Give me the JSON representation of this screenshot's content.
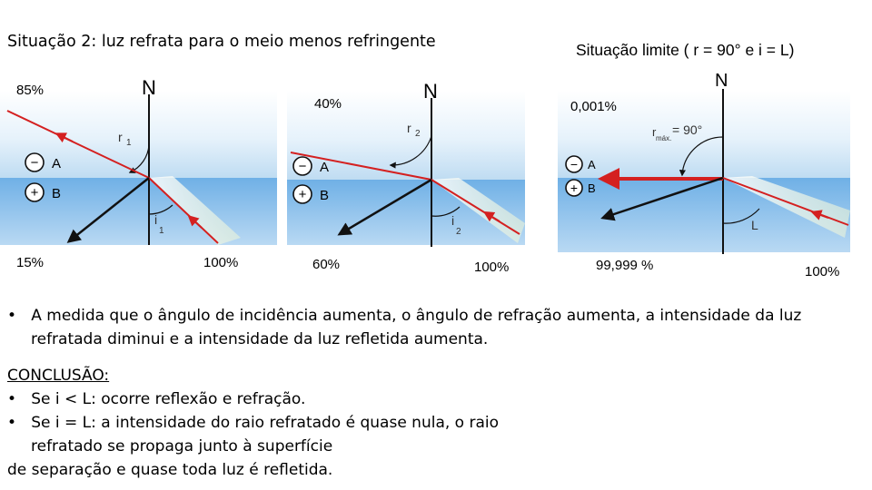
{
  "titles": {
    "situation2": "Situação 2: luz refrata para o meio menos refringente",
    "limit": "Situação limite ( r = 90° e i = L)"
  },
  "diagram1": {
    "normal": "N",
    "refracted_angle": "r",
    "refracted_sub": "1",
    "incident_angle": "i",
    "incident_sub": "1",
    "medium_minus": "−",
    "medium_minus_label": "A",
    "medium_plus": "+",
    "medium_plus_label": "B",
    "refracted_intensity": "85%",
    "reflected_intensity": "15%",
    "incident_intensity": "100%"
  },
  "diagram2": {
    "normal": "N",
    "refracted_angle": "r",
    "refracted_sub": "2",
    "incident_angle": "i",
    "incident_sub": "2",
    "medium_minus": "−",
    "medium_minus_label": "A",
    "medium_plus": "+",
    "medium_plus_label": "B",
    "refracted_intensity": "40%",
    "reflected_intensity": "60%",
    "incident_intensity": "100%"
  },
  "diagram3": {
    "normal": "N",
    "rmax_r": "r",
    "rmax_sub": "máx.",
    "rmax_value": "= 90°",
    "limit_angle": "L",
    "medium_minus": "−",
    "medium_minus_label": "A",
    "medium_plus": "+",
    "medium_plus_label": "B",
    "refracted_intensity": "0,001%",
    "reflected_intensity": "99,999 %",
    "incident_intensity": "100%"
  },
  "bullet": {
    "marker": "•",
    "line1": "A medida que o ângulo de incidência aumenta, o ângulo de refração aumenta, a intensidade da luz",
    "line2": "refratada diminui e a intensidade da luz refletida aumenta."
  },
  "conclusion": {
    "heading": "CONCLUSÃO:",
    "marker": "•",
    "item1": "Se i < L: ocorre reflexão e refração.",
    "item2_line1": "Se i = L: a intensidade do raio refratado é quase nula, o raio",
    "item2_line2": "refratado se propaga junto à superfície",
    "item2_line3": "de separação e quase toda luz é refletida."
  }
}
